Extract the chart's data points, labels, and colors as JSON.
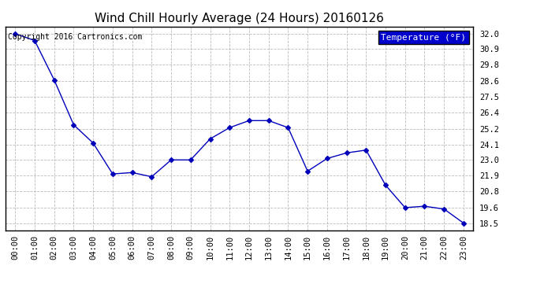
{
  "title": "Wind Chill Hourly Average (24 Hours) 20160126",
  "copyright_text": "Copyright 2016 Cartronics.com",
  "legend_label": "Temperature (°F)",
  "x_labels": [
    "00:00",
    "01:00",
    "02:00",
    "03:00",
    "04:00",
    "05:00",
    "06:00",
    "07:00",
    "08:00",
    "09:00",
    "10:00",
    "11:00",
    "12:00",
    "13:00",
    "14:00",
    "15:00",
    "16:00",
    "17:00",
    "18:00",
    "19:00",
    "20:00",
    "21:00",
    "22:00",
    "23:00"
  ],
  "y_values": [
    32.0,
    31.5,
    28.7,
    25.5,
    24.2,
    22.0,
    22.1,
    21.8,
    23.0,
    23.0,
    24.5,
    25.3,
    25.8,
    25.8,
    25.3,
    22.2,
    23.1,
    23.5,
    23.7,
    21.2,
    19.6,
    19.7,
    19.5,
    18.5
  ],
  "ylim_min": 18.0,
  "ylim_max": 32.5,
  "y_ticks": [
    18.5,
    19.6,
    20.8,
    21.9,
    23.0,
    24.1,
    25.2,
    26.4,
    27.5,
    28.6,
    29.8,
    30.9,
    32.0
  ],
  "line_color": "#0000bb",
  "marker": "D",
  "marker_size": 3,
  "background_color": "#ffffff",
  "plot_bg_color": "#ffffff",
  "grid_color": "#bbbbbb",
  "title_fontsize": 11,
  "tick_fontsize": 7.5,
  "copyright_fontsize": 7,
  "legend_bg_color": "#0000cc",
  "legend_text_color": "#ffffff",
  "legend_fontsize": 8
}
